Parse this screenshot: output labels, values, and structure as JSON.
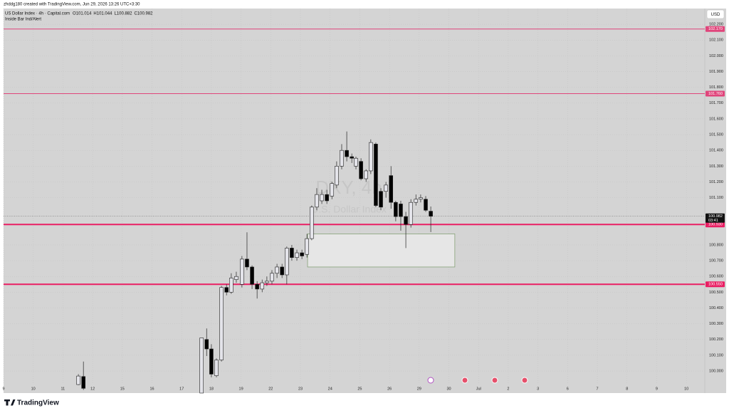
{
  "chart_data": {
    "type": "candlestick",
    "created_by": "zhddg180 created with TradingView.com, Jun 29, 2026 13:26 UTC+3:30",
    "title": "US Dollar Index · 4h · Capital.com",
    "ohlc_text": [
      "O101.014",
      "H101.044",
      "L100.882",
      "C100.982"
    ],
    "indicator": "Inside Bar Ind/Alert",
    "watermark": [
      "DXY, 4h",
      "U.S. Dollar Index"
    ],
    "currency": "USD",
    "brand": "TradingView",
    "up_color": "#e4e4ea",
    "down_color": "#000000",
    "grid": true,
    "x": [
      2.52,
      2.69,
      6.67,
      6.84,
      7.0,
      7.17,
      7.34,
      7.51,
      7.67,
      7.84,
      8.03,
      8.2,
      8.37,
      8.54,
      8.71,
      8.87,
      9.04,
      9.21,
      9.38,
      9.54,
      9.71,
      9.88,
      10.05,
      10.22,
      10.38,
      10.55,
      10.72,
      10.89,
      11.06,
      11.22,
      11.39,
      11.56,
      11.73,
      11.87,
      12.04,
      12.21,
      12.37,
      12.54,
      12.71,
      12.88,
      13.05,
      13.21,
      13.38,
      13.55,
      13.72,
      13.89,
      14.05,
      14.22,
      14.39
    ],
    "open": [
      99.914,
      99.965,
      99.86,
      100.2,
      100.14,
      99.97,
      100.07,
      100.53,
      100.5,
      100.58,
      100.55,
      100.71,
      100.66,
      100.55,
      100.52,
      100.56,
      100.57,
      100.62,
      100.66,
      100.61,
      100.78,
      100.72,
      100.75,
      100.74,
      100.84,
      101.04,
      101.08,
      101.12,
      101.11,
      101.18,
      101.3,
      101.4,
      101.36,
      101.3,
      101.33,
      101.22,
      101.27,
      101.44,
      101.14,
      101.14,
      101.24,
      101.07,
      101.06,
      100.98,
      100.93,
      101.07,
      101.09,
      101.09,
      101.014
    ],
    "high": [
      99.98,
      100.06,
      100.21,
      100.27,
      100.17,
      100.08,
      100.54,
      100.55,
      100.62,
      100.63,
      100.73,
      100.88,
      100.67,
      100.57,
      100.58,
      100.6,
      100.64,
      100.68,
      100.68,
      100.79,
      100.8,
      100.77,
      100.77,
      100.87,
      101.05,
      101.16,
      101.15,
      101.15,
      101.2,
      101.33,
      101.44,
      101.52,
      101.38,
      101.36,
      101.35,
      101.28,
      101.47,
      101.45,
      101.16,
      101.2,
      101.3,
      101.08,
      101.08,
      101.01,
      101.09,
      101.12,
      101.12,
      101.11,
      101.044
    ],
    "low": [
      99.91,
      99.88,
      99.85,
      100.095,
      99.96,
      99.96,
      100.06,
      100.48,
      100.49,
      100.56,
      100.53,
      100.64,
      100.52,
      100.46,
      100.5,
      100.54,
      100.55,
      100.59,
      100.59,
      100.55,
      100.7,
      100.7,
      100.71,
      100.72,
      100.83,
      101.02,
      101.06,
      101.06,
      101.09,
      101.16,
      101.28,
      101.33,
      101.32,
      101.28,
      101.21,
      101.2,
      101.25,
      101.04,
      101.02,
      101.1,
      101.03,
      100.95,
      100.89,
      100.78,
      100.91,
      101.05,
      101.07,
      101.01,
      100.882
    ],
    "close": [
      99.968,
      99.89,
      100.21,
      100.14,
      99.98,
      100.07,
      100.53,
      100.5,
      100.59,
      100.6,
      100.71,
      100.66,
      100.55,
      100.52,
      100.56,
      100.57,
      100.62,
      100.66,
      100.61,
      100.78,
      100.72,
      100.75,
      100.73,
      100.84,
      101.04,
      101.12,
      101.12,
      101.08,
      101.19,
      101.3,
      101.4,
      101.36,
      101.35,
      101.35,
      101.22,
      101.27,
      101.45,
      101.05,
      101.04,
      101.18,
      101.07,
      100.98,
      100.98,
      100.93,
      101.07,
      101.09,
      101.1,
      101.02,
      100.982
    ],
    "xlim": [
      0,
      23.62
    ],
    "xticks": [
      {
        "value": 0,
        "label": "9"
      },
      {
        "value": 1,
        "label": "10"
      },
      {
        "value": 2,
        "label": "11"
      },
      {
        "value": 3,
        "label": "12"
      },
      {
        "value": 4,
        "label": "15"
      },
      {
        "value": 5,
        "label": "16"
      },
      {
        "value": 6,
        "label": "17"
      },
      {
        "value": 7,
        "label": "18"
      },
      {
        "value": 8,
        "label": "19"
      },
      {
        "value": 9,
        "label": "22"
      },
      {
        "value": 10,
        "label": "23"
      },
      {
        "value": 11,
        "label": "24"
      },
      {
        "value": 12,
        "label": "25"
      },
      {
        "value": 13,
        "label": "26"
      },
      {
        "value": 14,
        "label": "29"
      },
      {
        "value": 15,
        "label": "30"
      },
      {
        "value": 16,
        "label": "Jul"
      },
      {
        "value": 17,
        "label": "2"
      },
      {
        "value": 18,
        "label": "3"
      },
      {
        "value": 19,
        "label": "6"
      },
      {
        "value": 20,
        "label": "7"
      },
      {
        "value": 21,
        "label": "8"
      },
      {
        "value": 22,
        "label": "9"
      },
      {
        "value": 23,
        "label": "10"
      }
    ],
    "ylim": [
      99.86,
      102.3
    ],
    "yticks": [
      {
        "value": 100.0,
        "label": "100.000"
      },
      {
        "value": 100.1,
        "label": "100.100"
      },
      {
        "value": 100.2,
        "label": "100.200"
      },
      {
        "value": 100.3,
        "label": "100.300"
      },
      {
        "value": 100.4,
        "label": "100.400"
      },
      {
        "value": 100.5,
        "label": "100.500"
      },
      {
        "value": 100.6,
        "label": "100.600"
      },
      {
        "value": 100.7,
        "label": "100.700"
      },
      {
        "value": 100.8,
        "label": "100.800"
      },
      {
        "value": 101.1,
        "label": "101.100"
      },
      {
        "value": 101.2,
        "label": "101.200"
      },
      {
        "value": 101.3,
        "label": "101.300"
      },
      {
        "value": 101.4,
        "label": "101.400"
      },
      {
        "value": 101.5,
        "label": "101.500"
      },
      {
        "value": 101.6,
        "label": "101.600"
      },
      {
        "value": 101.7,
        "label": "101.700"
      },
      {
        "value": 101.8,
        "label": "101.800"
      },
      {
        "value": 101.9,
        "label": "101.900"
      },
      {
        "value": 102.0,
        "label": "102.000"
      },
      {
        "value": 102.1,
        "label": "102.100"
      },
      {
        "value": 102.2,
        "label": "102.200"
      }
    ],
    "hlines": [
      {
        "value": 102.17,
        "label": "102.170",
        "line_width": 1,
        "color": "#e0457b"
      },
      {
        "value": 101.76,
        "label": "101.760",
        "line_width": 1,
        "color": "#e0457b"
      },
      {
        "value": 100.93,
        "label": "100.930",
        "line_width": 2,
        "color": "#e91e63"
      },
      {
        "value": 100.55,
        "label": "100.550",
        "line_width": 2,
        "color": "#e91e63"
      }
    ],
    "last_price": {
      "value": 100.982,
      "label": "100.982",
      "countdown": "03:41"
    },
    "zone": {
      "top": 100.87,
      "bottom": 100.66,
      "x_start": 10.24,
      "x_end": 15.2,
      "fill": "#e6e6e6",
      "border": "#7a9a6a"
    }
  }
}
